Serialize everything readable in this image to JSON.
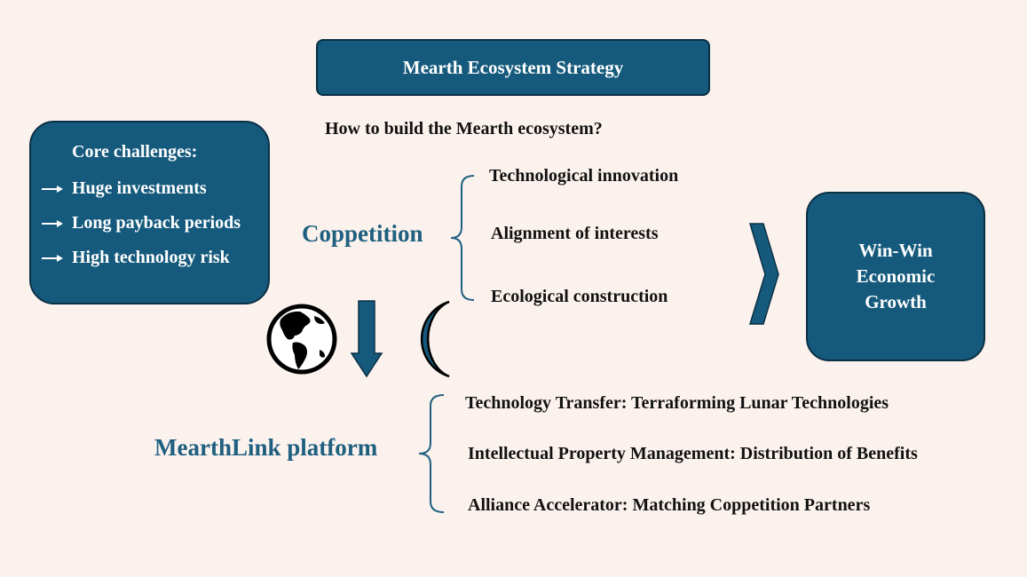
{
  "title": "Mearth Ecosystem Strategy",
  "question": "How to build the Mearth ecosystem?",
  "challenges": {
    "heading": "Core challenges:",
    "items": [
      "Huge investments",
      "Long payback periods",
      "High technology risk"
    ]
  },
  "coppetition": {
    "label": "Coppetition",
    "branches": [
      "Technological innovation",
      "Alignment of interests",
      "Ecological construction"
    ]
  },
  "outcome": "Win-Win\nEconomic\nGrowth",
  "platform": {
    "label": "MearthLink platform",
    "items": [
      "Technology Transfer: Terraforming Lunar Technologies",
      "Intellectual Property Management: Distribution of Benefits",
      "Alliance Accelerator: Matching Coppetition Partners"
    ]
  },
  "icons": [
    "globe-icon",
    "down-arrow-icon",
    "moon-icon",
    "chevron-right-icon"
  ],
  "colors": {
    "box": "#155a7c",
    "accent_text": "#1f5f7f",
    "background": "#fbf2ee"
  }
}
